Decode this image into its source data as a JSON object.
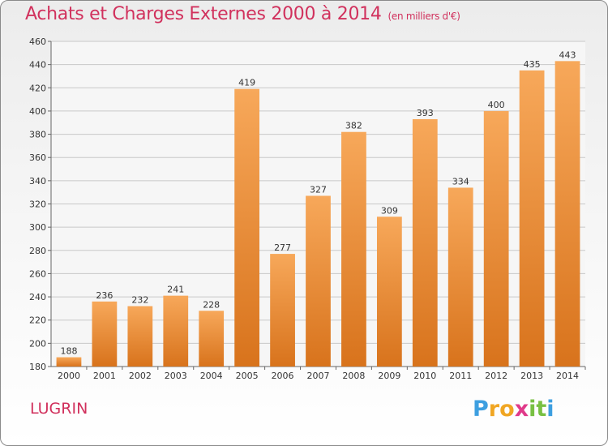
{
  "title": "Achats et Charges Externes 2000 à 2014",
  "subtitle": "(en milliers d'€)",
  "location": "LUGRIN",
  "logo": {
    "letters": [
      "P",
      "r",
      "o",
      "x",
      "i",
      "t",
      "i"
    ],
    "colors": [
      "#3d9fe0",
      "#f0a623",
      "#f0a623",
      "#e03a8a",
      "#78c043",
      "#78c043",
      "#3d9fe0"
    ]
  },
  "colors": {
    "title": "#d1315d",
    "bar_light": "#f7a85a",
    "bar_dark": "#d8731c",
    "grid": "#c8c8c8"
  },
  "chart_data": {
    "type": "bar",
    "categories": [
      "2000",
      "2001",
      "2002",
      "2003",
      "2004",
      "2005",
      "2006",
      "2007",
      "2008",
      "2009",
      "2010",
      "2011",
      "2012",
      "2013",
      "2014"
    ],
    "values": [
      188,
      236,
      232,
      241,
      228,
      419,
      277,
      327,
      382,
      309,
      393,
      334,
      400,
      435,
      443
    ],
    "ylim": [
      180,
      460
    ],
    "yticks": [
      180,
      200,
      220,
      240,
      260,
      280,
      300,
      320,
      340,
      360,
      380,
      400,
      420,
      440,
      460
    ],
    "grid": true,
    "xlabel": "",
    "ylabel": ""
  }
}
